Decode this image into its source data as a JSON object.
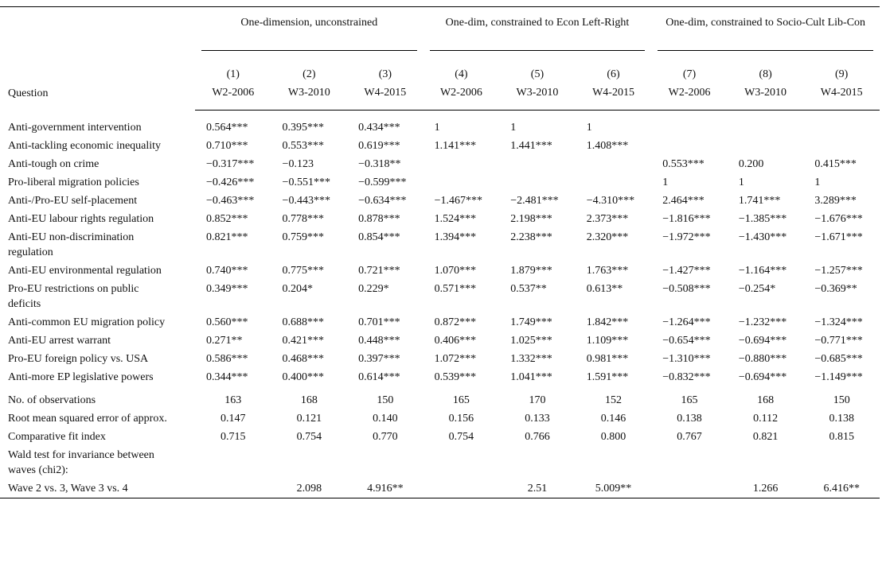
{
  "table": {
    "row_header": "Question",
    "column_groups": [
      "One-dimension, unconstrained",
      "One-dim, constrained to Econ Left-Right",
      "One-dim, constrained to Socio-Cult Lib-Con"
    ],
    "column_numbers": [
      "(1)",
      "(2)",
      "(3)",
      "(4)",
      "(5)",
      "(6)",
      "(7)",
      "(8)",
      "(9)"
    ],
    "waves": [
      "W2-2006",
      "W3-2010",
      "W4-2015",
      "W2-2006",
      "W3-2010",
      "W4-2015",
      "W2-2006",
      "W3-2010",
      "W4-2015"
    ],
    "rows": [
      {
        "label": "Anti-government intervention",
        "cells": [
          "0.564***",
          "0.395***",
          "0.434***",
          "1",
          "1",
          "1",
          null,
          null,
          null
        ]
      },
      {
        "label": "Anti-tackling economic inequality",
        "cells": [
          "0.710***",
          "0.553***",
          "0.619***",
          "1.141***",
          "1.441***",
          "1.408***",
          null,
          null,
          null
        ]
      },
      {
        "label": "Anti-tough on crime",
        "cells": [
          "−0.317***",
          "−0.123",
          "−0.318**",
          null,
          null,
          null,
          "0.553***",
          "0.200",
          "0.415***"
        ]
      },
      {
        "label": "Pro-liberal migration policies",
        "cells": [
          "−0.426***",
          "−0.551***",
          "−0.599***",
          null,
          null,
          null,
          "1",
          "1",
          "1"
        ]
      },
      {
        "label": "Anti-/Pro-EU self-placement",
        "cells": [
          "−0.463***",
          "−0.443***",
          "−0.634***",
          "−1.467***",
          "−2.481***",
          "−4.310***",
          "2.464***",
          "1.741***",
          "3.289***"
        ]
      },
      {
        "label": "Anti-EU labour rights regulation",
        "cells": [
          "0.852***",
          "0.778***",
          "0.878***",
          "1.524***",
          "2.198***",
          "2.373***",
          "−1.816***",
          "−1.385***",
          "−1.676***"
        ]
      },
      {
        "label": "Anti-EU non-discrimination regulation",
        "cells": [
          "0.821***",
          "0.759***",
          "0.854***",
          "1.394***",
          "2.238***",
          "2.320***",
          "−1.972***",
          "−1.430***",
          "−1.671***"
        ]
      },
      {
        "label": "Anti-EU environmental regulation",
        "cells": [
          "0.740***",
          "0.775***",
          "0.721***",
          "1.070***",
          "1.879***",
          "1.763***",
          "−1.427***",
          "−1.164***",
          "−1.257***"
        ]
      },
      {
        "label": "Pro-EU restrictions on public deficits",
        "cells": [
          "0.349***",
          "0.204*",
          "0.229*",
          "0.571***",
          "0.537**",
          "0.613**",
          "−0.508***",
          "−0.254*",
          "−0.369**"
        ]
      },
      {
        "label": "Anti-common EU migration policy",
        "cells": [
          "0.560***",
          "0.688***",
          "0.701***",
          "0.872***",
          "1.749***",
          "1.842***",
          "−1.264***",
          "−1.232***",
          "−1.324***"
        ]
      },
      {
        "label": "Anti-EU arrest warrant",
        "cells": [
          "0.271**",
          "0.421***",
          "0.448***",
          "0.406***",
          "1.025***",
          "1.109***",
          "−0.654***",
          "−0.694***",
          "−0.771***"
        ]
      },
      {
        "label": "Pro-EU foreign policy vs. USA",
        "cells": [
          "0.586***",
          "0.468***",
          "0.397***",
          "1.072***",
          "1.332***",
          "0.981***",
          "−1.310***",
          "−0.880***",
          "−0.685***"
        ]
      },
      {
        "label": "Anti-more EP legislative powers",
        "cells": [
          "0.344***",
          "0.400***",
          "0.614***",
          "0.539***",
          "1.041***",
          "1.591***",
          "−0.832***",
          "−0.694***",
          "−1.149***"
        ]
      }
    ],
    "statistics": [
      {
        "label": "No. of observations",
        "cells": [
          "163",
          "168",
          "150",
          "165",
          "170",
          "152",
          "165",
          "168",
          "150"
        ]
      },
      {
        "label": "Root mean squared error of approx.",
        "cells": [
          "0.147",
          "0.121",
          "0.140",
          "0.156",
          "0.133",
          "0.146",
          "0.138",
          "0.112",
          "0.138"
        ]
      },
      {
        "label": "Comparative fit index",
        "cells": [
          "0.715",
          "0.754",
          "0.770",
          "0.754",
          "0.766",
          "0.800",
          "0.767",
          "0.821",
          "0.815"
        ]
      },
      {
        "label": "Wald test for invariance between waves (chi2):",
        "cells": [
          null,
          null,
          null,
          null,
          null,
          null,
          null,
          null,
          null
        ]
      },
      {
        "label": "Wave 2 vs. 3, Wave 3 vs. 4",
        "cells": [
          null,
          "2.098",
          "4.916**",
          null,
          "2.51",
          "5.009**",
          null,
          "1.266",
          "6.416**"
        ]
      }
    ]
  }
}
